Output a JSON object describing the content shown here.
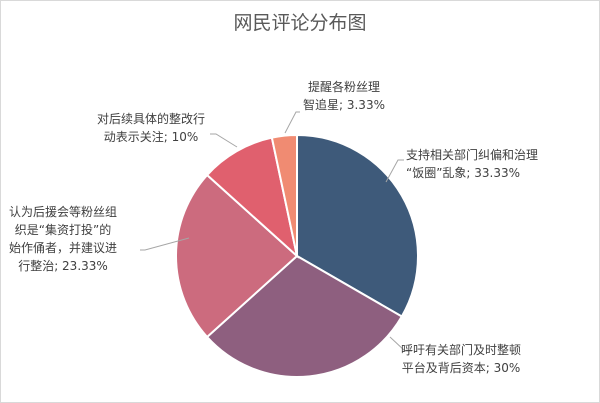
{
  "chart_data": {
    "type": "pie",
    "title": "网民评论分布图",
    "slices": [
      {
        "value": 33.33,
        "color": "#3e5a7a",
        "label_lines": [
          "支持相关部门纠偏和治理",
          "“饭圈”乱象; 33.33%"
        ]
      },
      {
        "value": 30,
        "color": "#8e5f7f",
        "label_lines": [
          "呼吁有关部门及时整顿",
          "平台及背后资本; 30%"
        ]
      },
      {
        "value": 23.33,
        "color": "#cc6b7e",
        "label_lines": [
          "认为后援会等粉丝组",
          "织是“集资打投”的",
          "始作俑者，并建议进",
          "行整治; 23.33%"
        ]
      },
      {
        "value": 10,
        "color": "#e0606e",
        "label_lines": [
          "对后续具体的整改行",
          "动表示关注; 10%"
        ]
      },
      {
        "value": 3.33,
        "color": "#f08b72",
        "label_lines": [
          "提醒各粉丝理",
          "智追星; 3.33%"
        ]
      }
    ]
  }
}
